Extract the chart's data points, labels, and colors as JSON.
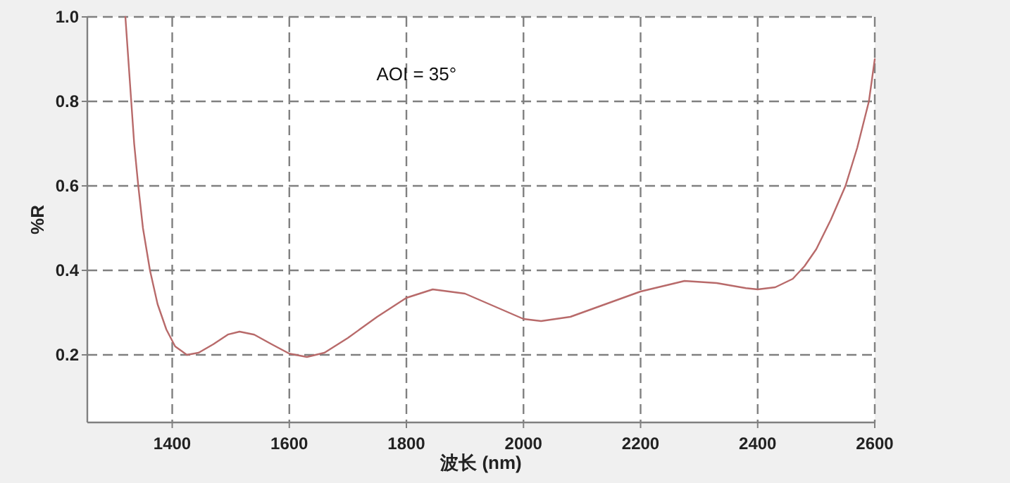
{
  "chart_data": {
    "type": "line",
    "xlabel": "波长 (nm)",
    "ylabel": "%R",
    "annotations": [
      "AOI = 35°"
    ],
    "xlim": [
      1255,
      2600
    ],
    "xticks": [
      1400,
      1600,
      1800,
      2000,
      2200,
      2400,
      2600
    ],
    "ylim": [
      0.04,
      1.0
    ],
    "yticks": [
      0.2,
      0.4,
      0.6,
      0.8,
      {
        "value": 1.0,
        "label": "1.0"
      }
    ],
    "grid": true,
    "line_style": "solid",
    "marker": "none",
    "series": [
      {
        "color": "#b86a6a",
        "x": [
          1320,
          1325,
          1330,
          1335,
          1342,
          1350,
          1362,
          1375,
          1390,
          1405,
          1425,
          1445,
          1470,
          1495,
          1515,
          1540,
          1570,
          1600,
          1630,
          1660,
          1700,
          1750,
          1800,
          1845,
          1900,
          1950,
          2000,
          2030,
          2080,
          2130,
          2200,
          2275,
          2330,
          2380,
          2400,
          2430,
          2460,
          2480,
          2500,
          2525,
          2550,
          2570,
          2590,
          2600
        ],
        "values": [
          1.0,
          0.9,
          0.8,
          0.7,
          0.6,
          0.5,
          0.4,
          0.32,
          0.26,
          0.22,
          0.2,
          0.205,
          0.225,
          0.248,
          0.255,
          0.248,
          0.225,
          0.203,
          0.195,
          0.205,
          0.24,
          0.29,
          0.335,
          0.355,
          0.345,
          0.315,
          0.285,
          0.28,
          0.29,
          0.315,
          0.35,
          0.375,
          0.37,
          0.358,
          0.355,
          0.36,
          0.38,
          0.41,
          0.45,
          0.52,
          0.6,
          0.69,
          0.8,
          0.9
        ]
      }
    ]
  }
}
